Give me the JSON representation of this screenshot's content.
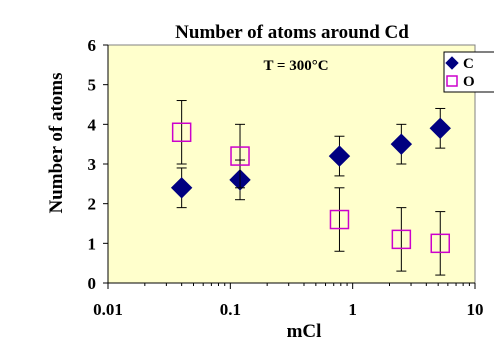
{
  "chart_data": {
    "type": "scatter",
    "title": "Number of atoms around Cd",
    "annotation": "T = 300°C",
    "xlabel": "mCl",
    "ylabel": "Number of atoms",
    "xscale": "log",
    "xlim": [
      0.01,
      10
    ],
    "ylim": [
      0,
      6
    ],
    "xticks": [
      "0.01",
      "0.1",
      "1",
      "10"
    ],
    "yticks": [
      "0",
      "1",
      "2",
      "3",
      "4",
      "5",
      "6"
    ],
    "legend_position": "top-right",
    "plot_background": "#ffffcc",
    "series": [
      {
        "name": "Cl",
        "legend_label": "C",
        "marker": "filled-diamond",
        "color": "#000080",
        "points": [
          {
            "x": 0.04,
            "y": 2.4,
            "err": 0.5
          },
          {
            "x": 0.12,
            "y": 2.6,
            "err": 0.5
          },
          {
            "x": 0.78,
            "y": 3.2,
            "err": 0.5
          },
          {
            "x": 2.5,
            "y": 3.5,
            "err": 0.5
          },
          {
            "x": 5.2,
            "y": 3.9,
            "err": 0.5
          }
        ]
      },
      {
        "name": "O",
        "legend_label": "O",
        "marker": "open-square",
        "color": "#cc00cc",
        "points": [
          {
            "x": 0.04,
            "y": 3.8,
            "err": 0.8
          },
          {
            "x": 0.12,
            "y": 3.2,
            "err": 0.8
          },
          {
            "x": 0.78,
            "y": 1.6,
            "err": 0.8
          },
          {
            "x": 2.5,
            "y": 1.1,
            "err": 0.8
          },
          {
            "x": 5.2,
            "y": 1.0,
            "err": 0.8
          }
        ]
      }
    ]
  }
}
